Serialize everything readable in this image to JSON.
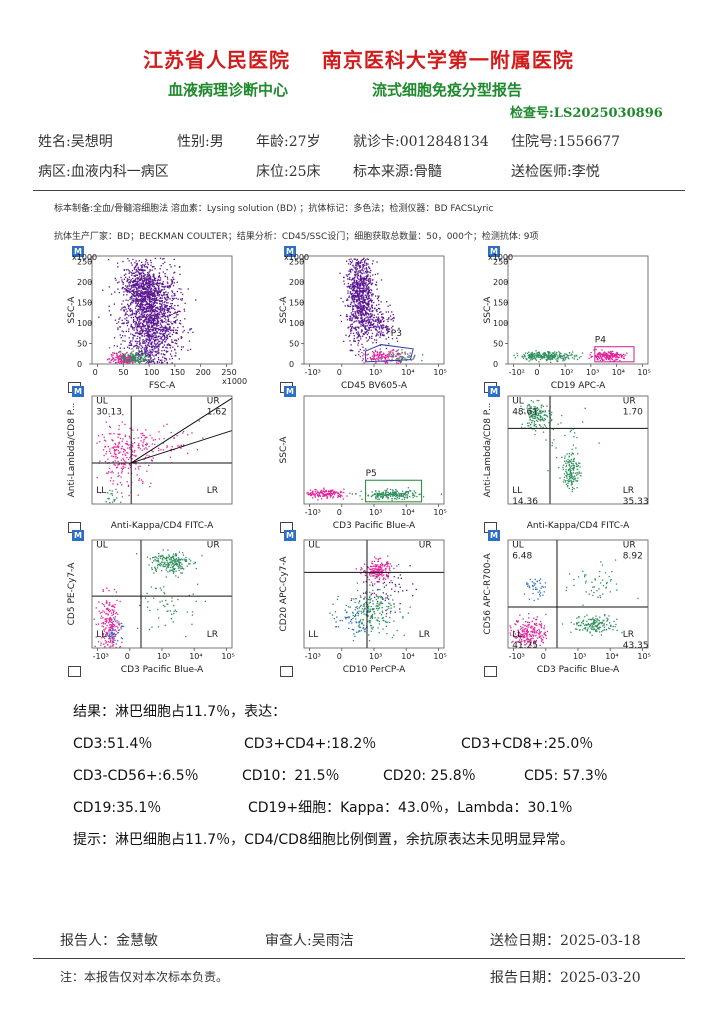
{
  "header": {
    "hospital_left": "江苏省人民医院",
    "hospital_right": "南京医科大学第一附属医院",
    "center": "血液病理诊断中心",
    "report_title": "流式细胞免疫分型报告",
    "exam_no": "检查号:LS2025030896"
  },
  "patient": {
    "name": "姓名:吴想明",
    "sex": "性别:男",
    "age": "年龄:27岁",
    "card": "就诊卡:0012848134",
    "admission": "住院号:1556677",
    "ward": "病区:血液内科一病区",
    "bed": "床位:25床",
    "specimen": "标本来源:骨髓",
    "doctor": "送检医师:李悦"
  },
  "method": {
    "line1": "标本制备:全血/骨髓溶细胞法 溶血素：Lysing solution (BD) ；抗体标记：多色法；检测仪器：BD FACSLyric",
    "line2": "抗体生产厂家：BD；BECKMAN COULTER；结果分析：CD45/SSC设门；细胞获取总数量：50，000个；检测抗体: 9项"
  },
  "colors": {
    "red": "#d11c1c",
    "green": "#1e8a2c",
    "purple": "#5a1690",
    "magenta": "#e0249a",
    "teal": "#2f8f5c",
    "blue": "#2c6fc4"
  },
  "plots": [
    {
      "id": "p1",
      "m_icon": "M",
      "xlabel": "FSC-A",
      "ylabel": "SSC-A",
      "x_ticks": [
        "0",
        "50",
        "100",
        "150",
        "200",
        "250"
      ],
      "y_ticks": [
        "0",
        "50",
        "100",
        "150",
        "200",
        "250"
      ],
      "x_mult": "x1000",
      "y_mult": "x1000"
    },
    {
      "id": "p2",
      "m_icon": "M",
      "xlabel": "CD45 BV605-A",
      "ylabel": "SSC-A",
      "gate": "P3",
      "x_ticks": [
        "-10³",
        "0",
        "10³",
        "10⁴",
        "10⁵"
      ],
      "y_ticks": [
        "0",
        "50",
        "100",
        "150",
        "200",
        "250"
      ],
      "y_mult": "x1000"
    },
    {
      "id": "p3",
      "m_icon": "M",
      "xlabel": "CD19 APC-A",
      "ylabel": "SSC-A",
      "gate": "P4",
      "x_ticks": [
        "-10²",
        "0",
        "10²",
        "10³",
        "10⁴",
        "10⁵"
      ],
      "y_ticks": [
        "0",
        "50",
        "100",
        "150",
        "200",
        "250"
      ],
      "y_mult": "x1000"
    },
    {
      "id": "p4",
      "m_icon": "M",
      "xlabel": "Anti-Kappa/CD4 FITC-A",
      "ylabel": "Anti-Lambda/CD8 P...",
      "ul_label": "UL",
      "ul_value": "30.13",
      "ur_label": "UR",
      "ur_value": "1.62",
      "ll_label": "LL",
      "lr_label": "LR"
    },
    {
      "id": "p5",
      "m_icon": "M",
      "xlabel": "CD3 Pacific Blue-A",
      "ylabel": "SSC-A",
      "gate": "P5",
      "x_ticks": [
        "-10³",
        "0",
        "10³",
        "10⁴",
        "10⁵"
      ]
    },
    {
      "id": "p6",
      "m_icon": "M",
      "xlabel": "Anti-Kappa/CD4 FITC-A",
      "ylabel": "Anti-Lambda/CD8 P...",
      "ul_label": "UL",
      "ul_value": "48.61",
      "ur_label": "UR",
      "ur_value": "1.70",
      "ll_label": "LL",
      "ll_value": "14.36",
      "lr_label": "LR",
      "lr_value": "35.33"
    },
    {
      "id": "p7",
      "m_icon": "M",
      "xlabel": "CD3 Pacific Blue-A",
      "ylabel": "CD5 PE-Cy7-A",
      "ul_label": "UL",
      "ur_label": "UR",
      "ll_label": "LL",
      "lr_label": "LR",
      "x_ticks": [
        "-10³",
        "0",
        "10³",
        "10⁴",
        "10⁵"
      ]
    },
    {
      "id": "p8",
      "m_icon": "M",
      "xlabel": "CD10 PerCP-A",
      "ylabel": "CD20 APC-Cy7-A",
      "ul_label": "UL",
      "ur_label": "UR",
      "ll_label": "LL",
      "lr_label": "LR",
      "x_ticks": [
        "-10³",
        "0",
        "10³",
        "10⁴",
        "10⁵"
      ]
    },
    {
      "id": "p9",
      "m_icon": "M",
      "xlabel": "CD3 Pacific Blue-A",
      "ylabel": "CD56 APC-R700-A",
      "ul_label": "UL",
      "ul_value": "6.48",
      "ur_label": "UR",
      "ur_value": "8.92",
      "ll_label": "LL",
      "ll_value": "41.25",
      "lr_label": "LR",
      "lr_value": "43.35",
      "x_ticks": [
        "-10³",
        "0",
        "10³",
        "10⁴",
        "10⁵"
      ]
    }
  ],
  "results": {
    "intro": "结果：淋巴细胞占11.7％，表达：",
    "cd3": "CD3:51.4％",
    "cd3cd4": "CD3+CD4+:18.2％",
    "cd3cd8": "CD3+CD8+:25.0％",
    "cd3cd56": "CD3-CD56+:6.5％",
    "cd10": "CD10：21.5％",
    "cd20": "CD20: 25.8％",
    "cd5": "CD5: 57.3％",
    "cd19": "CD19:35.1％",
    "cd19cells": "CD19+细胞：Kappa：43.0％，Lambda：30.1％",
    "hint": "提示：淋巴细胞占11.7％，CD4/CD8细胞比例倒置，余抗原表达未见明显异常。"
  },
  "footer": {
    "reporter": "报告人：金慧敏",
    "reviewer": "审查人:吴雨洁",
    "send_date": "送检日期：2025-03-18",
    "note": "注：本报告仅对本次标本负责。",
    "report_date": "报告日期：2025-03-20"
  }
}
